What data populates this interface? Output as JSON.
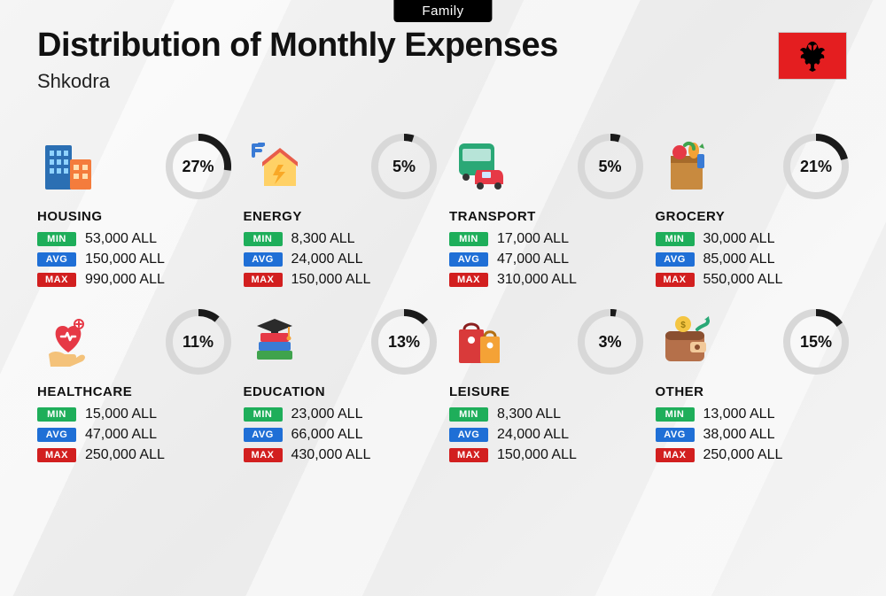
{
  "header": {
    "badge": "Family",
    "title": "Distribution of Monthly Expenses",
    "subtitle": "Shkodra"
  },
  "flag": {
    "name": "albania-flag",
    "bg_color": "#e41e20",
    "emblem_color": "#000000"
  },
  "labels": {
    "min": "MIN",
    "avg": "AVG",
    "max": "MAX"
  },
  "colors": {
    "min": "#1eae5a",
    "avg": "#1f6fd6",
    "max": "#d21f1f",
    "donut_fg": "#1a1a1a",
    "donut_bg": "#d8d8d8",
    "background": "#f2f2f2"
  },
  "donut": {
    "radius": 33,
    "stroke_width": 8
  },
  "currency": "ALL",
  "categories": [
    {
      "key": "housing",
      "name": "HOUSING",
      "percent": 27,
      "min": "53,000 ALL",
      "avg": "150,000 ALL",
      "max": "990,000 ALL",
      "icon": "buildings-icon"
    },
    {
      "key": "energy",
      "name": "ENERGY",
      "percent": 5,
      "min": "8,300 ALL",
      "avg": "24,000 ALL",
      "max": "150,000 ALL",
      "icon": "energy-house-icon"
    },
    {
      "key": "transport",
      "name": "TRANSPORT",
      "percent": 5,
      "min": "17,000 ALL",
      "avg": "47,000 ALL",
      "max": "310,000 ALL",
      "icon": "bus-car-icon"
    },
    {
      "key": "grocery",
      "name": "GROCERY",
      "percent": 21,
      "min": "30,000 ALL",
      "avg": "85,000 ALL",
      "max": "550,000 ALL",
      "icon": "grocery-bag-icon"
    },
    {
      "key": "healthcare",
      "name": "HEALTHCARE",
      "percent": 11,
      "min": "15,000 ALL",
      "avg": "47,000 ALL",
      "max": "250,000 ALL",
      "icon": "heart-hand-icon"
    },
    {
      "key": "education",
      "name": "EDUCATION",
      "percent": 13,
      "min": "23,000 ALL",
      "avg": "66,000 ALL",
      "max": "430,000 ALL",
      "icon": "books-cap-icon"
    },
    {
      "key": "leisure",
      "name": "LEISURE",
      "percent": 3,
      "min": "8,300 ALL",
      "avg": "24,000 ALL",
      "max": "150,000 ALL",
      "icon": "shopping-bags-icon"
    },
    {
      "key": "other",
      "name": "OTHER",
      "percent": 15,
      "min": "13,000 ALL",
      "avg": "38,000 ALL",
      "max": "250,000 ALL",
      "icon": "wallet-icon"
    }
  ]
}
